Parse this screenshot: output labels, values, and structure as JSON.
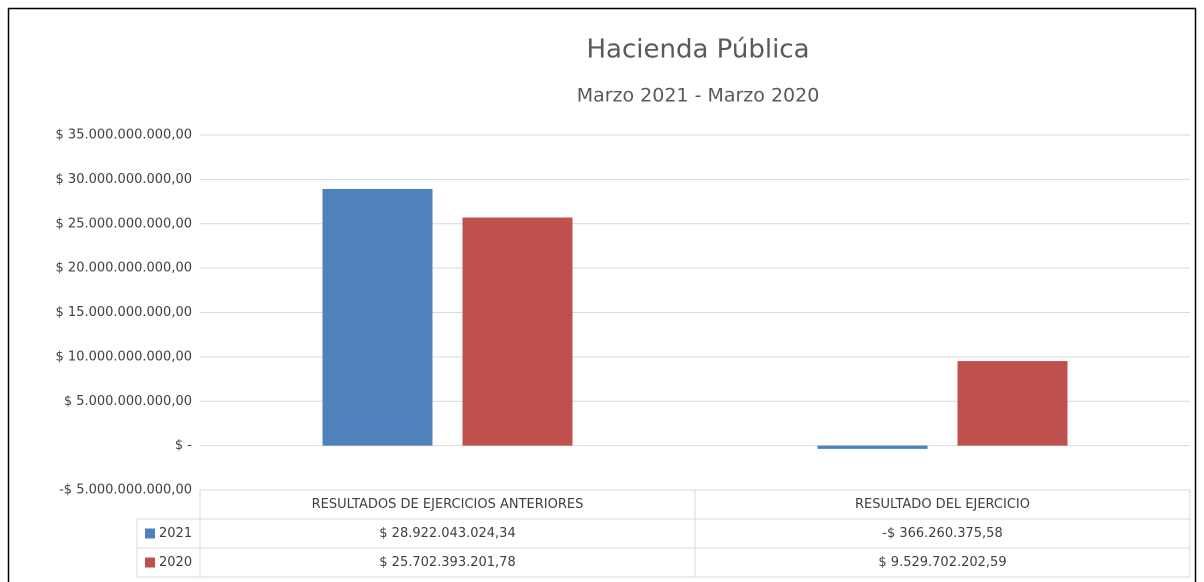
{
  "chart_data": {
    "type": "bar",
    "title": "Hacienda Pública",
    "subtitle": "Marzo 2021 - Marzo 2020",
    "categories": [
      "RESULTADOS DE EJERCICIOS ANTERIORES",
      "RESULTADO DEL EJERCICIO"
    ],
    "series": [
      {
        "name": "2021",
        "color": "#4f81bd",
        "values": [
          28922043024.34,
          -366260375.58
        ],
        "value_labels": [
          "$ 28.922.043.024,34",
          "-$ 366.260.375,58"
        ]
      },
      {
        "name": "2020",
        "color": "#c0504d",
        "values": [
          25702393201.78,
          9529702202.59
        ],
        "value_labels": [
          "$ 25.702.393.201,78",
          "$ 9.529.702.202,59"
        ]
      }
    ],
    "ylim": [
      -5000000000,
      35000000000
    ],
    "yticks": [
      {
        "value": -5000000000,
        "label": "-$ 5.000.000.000,00"
      },
      {
        "value": 0,
        "label": "$ -"
      },
      {
        "value": 5000000000,
        "label": "$ 5.000.000.000,00"
      },
      {
        "value": 10000000000,
        "label": "$ 10.000.000.000,00"
      },
      {
        "value": 15000000000,
        "label": "$ 15.000.000.000,00"
      },
      {
        "value": 20000000000,
        "label": "$ 20.000.000.000,00"
      },
      {
        "value": 25000000000,
        "label": "$ 25.000.000.000,00"
      },
      {
        "value": 30000000000,
        "label": "$ 30.000.000.000,00"
      },
      {
        "value": 35000000000,
        "label": "$ 35.000.000.000,00"
      }
    ],
    "grid": true
  }
}
